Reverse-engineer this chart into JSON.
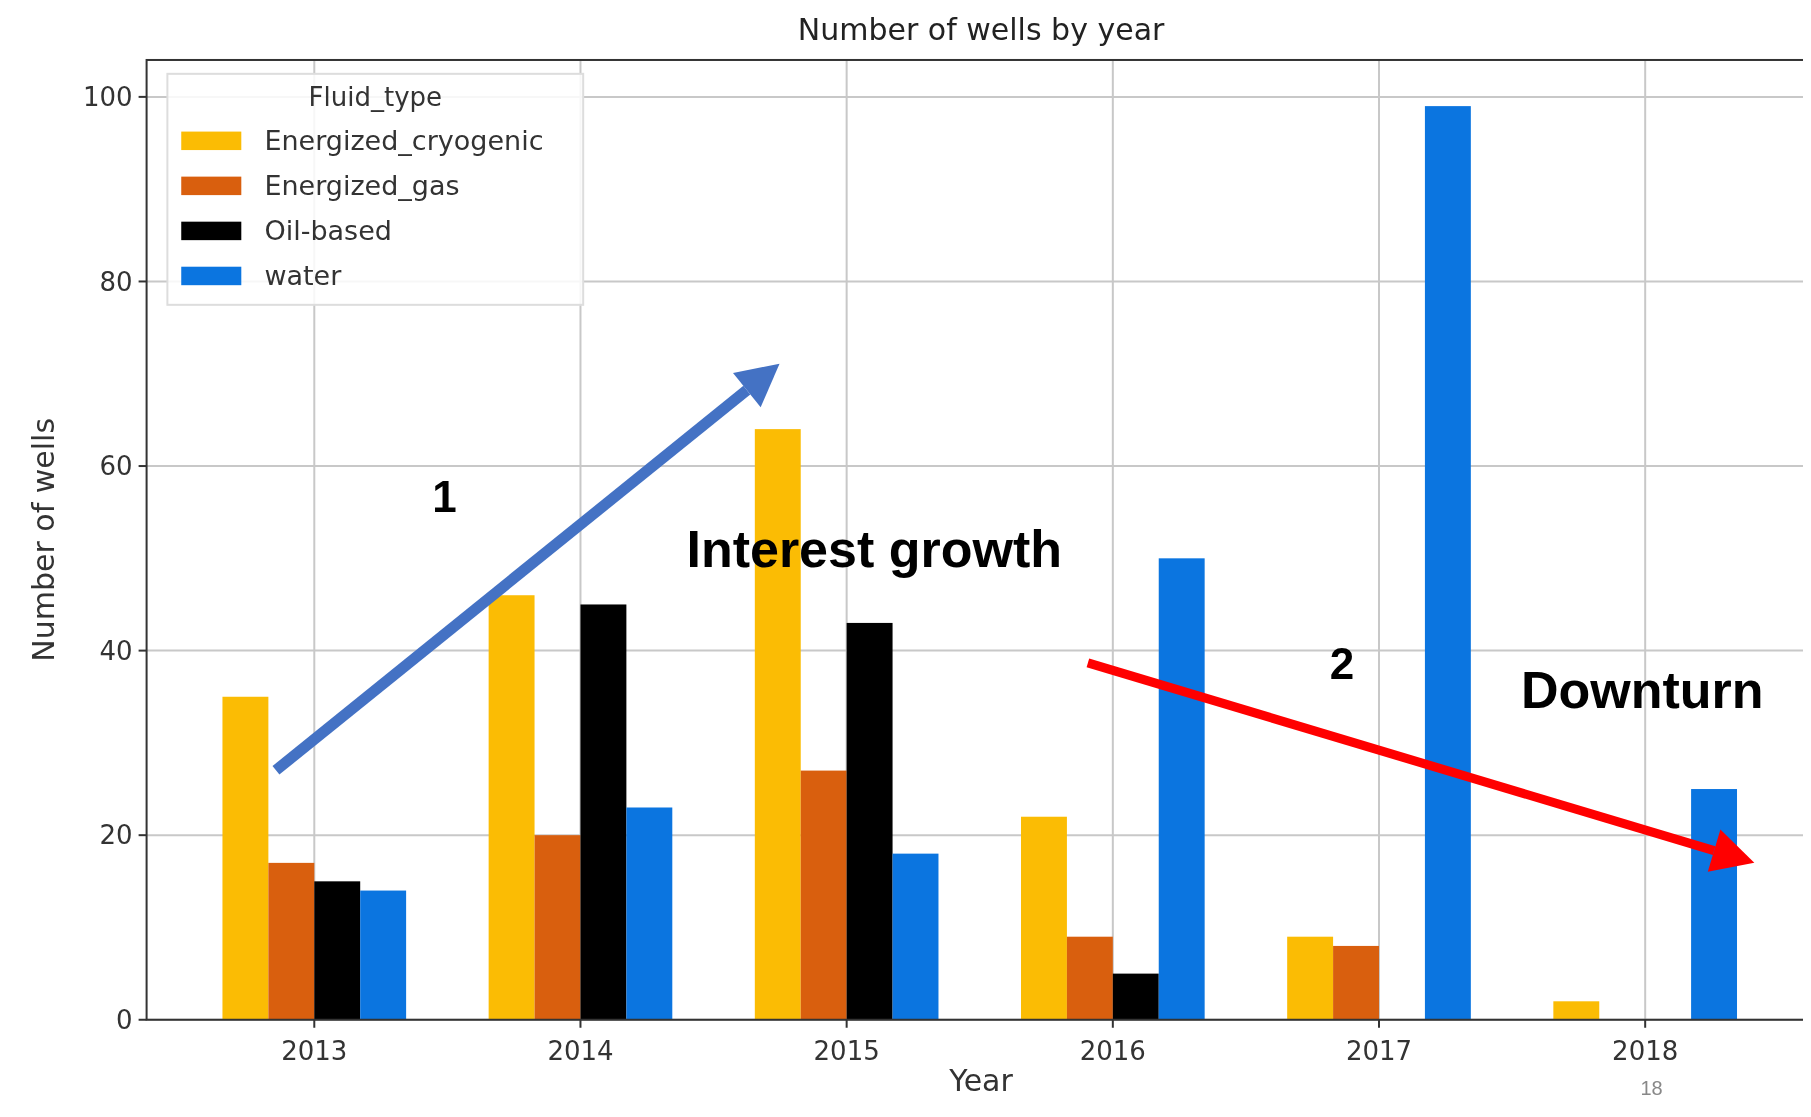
{
  "chart_data": {
    "type": "bar",
    "title": "Number of wells by year",
    "xlabel": "Year",
    "ylabel": "Number of wells",
    "legend_title": "Fluid_type",
    "categories": [
      "2013",
      "2014",
      "2015",
      "2016",
      "2017",
      "2018"
    ],
    "series": [
      {
        "name": "Energized_cryogenic",
        "color": "#fbbc04",
        "values": [
          35,
          46,
          64,
          22,
          9,
          2
        ]
      },
      {
        "name": "Energized_gas",
        "color": "#d95f0e",
        "values": [
          17,
          20,
          27,
          9,
          8,
          null
        ]
      },
      {
        "name": "Oil-based",
        "color": "#000000",
        "values": [
          15,
          45,
          43,
          5,
          null,
          null
        ]
      },
      {
        "name": "water",
        "color": "#0b75e0",
        "values": [
          14,
          23,
          18,
          50,
          99,
          25
        ]
      }
    ],
    "ylim": [
      0,
      104
    ],
    "yticks": [
      0,
      20,
      40,
      60,
      80,
      100
    ],
    "grid": true,
    "legend": "top left",
    "annotations": [
      "1",
      "Interest growth",
      "2",
      "Downturn",
      "18"
    ]
  }
}
